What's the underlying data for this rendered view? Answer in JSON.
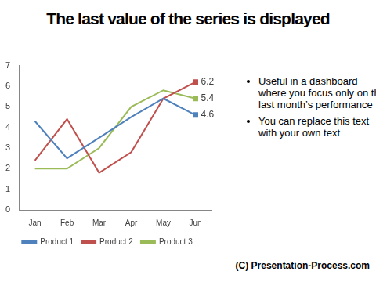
{
  "chart_data": {
    "type": "line",
    "title": "The last value of the series is displayed",
    "categories": [
      "Jan",
      "Feb",
      "Mar",
      "Apr",
      "May",
      "Jun"
    ],
    "series": [
      {
        "name": "Product 1",
        "color": "#4f81bd",
        "marker": "square",
        "values": [
          4.3,
          2.5,
          3.5,
          4.5,
          5.4,
          4.6
        ],
        "value_labels": [
          null,
          null,
          null,
          null,
          null,
          "4.6"
        ]
      },
      {
        "name": "Product 2",
        "color": "#c0504d",
        "marker": "square",
        "values": [
          2.4,
          4.4,
          1.8,
          2.8,
          5.4,
          6.2
        ],
        "value_labels": [
          null,
          null,
          null,
          null,
          null,
          "6.2"
        ]
      },
      {
        "name": "Product 3",
        "color": "#9bbb59",
        "marker": "square",
        "values": [
          2.0,
          2.0,
          3.0,
          5.0,
          5.8,
          5.4
        ],
        "value_labels": [
          null,
          null,
          null,
          null,
          null,
          "5.4"
        ]
      }
    ],
    "ylim": [
      0,
      7
    ],
    "yticks": [
      0,
      1,
      2,
      3,
      4,
      5,
      6,
      7
    ],
    "grid": false,
    "legend": "bottom"
  },
  "bullets": [
    "Useful in a dashboard where you focus only on the last month’s performance",
    "You can replace this text with your own text"
  ],
  "footer": "(C) Presentation-Process.com"
}
